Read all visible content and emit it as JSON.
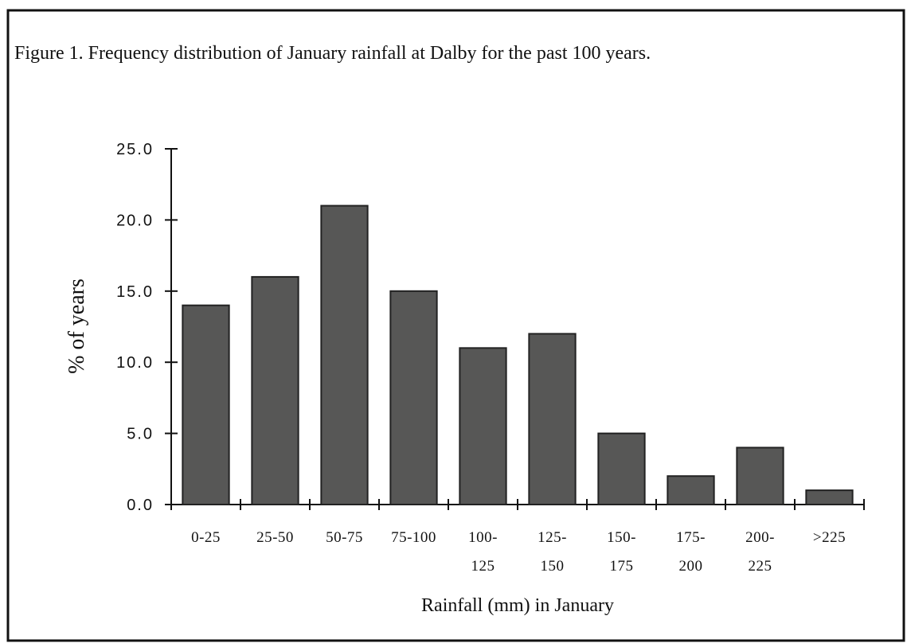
{
  "chart_data": {
    "type": "bar",
    "title": "Figure 1.  Frequency distribution of January rainfall at Dalby for the past 100 years.",
    "y_label": "% of years",
    "x_label": "Rainfall (mm) in January",
    "categories": [
      "0-25",
      "25-50",
      "50-75",
      "75-100",
      "100-\n125",
      "125-\n150",
      "150-\n175",
      "175-\n200",
      "200-\n225",
      ">225"
    ],
    "values": [
      14,
      16,
      21,
      15,
      11,
      12,
      5,
      2,
      4,
      1
    ],
    "color": "#575756",
    "ylim": [
      0,
      25
    ],
    "yticks": [
      {
        "value": 0,
        "label": "0.0"
      },
      {
        "value": 5,
        "label": "5.0"
      },
      {
        "value": 10,
        "label": "10.0"
      },
      {
        "value": 15,
        "label": "15.0"
      },
      {
        "value": 20,
        "label": "20.0"
      },
      {
        "value": 25,
        "label": "25.0"
      }
    ],
    "grid": false
  }
}
